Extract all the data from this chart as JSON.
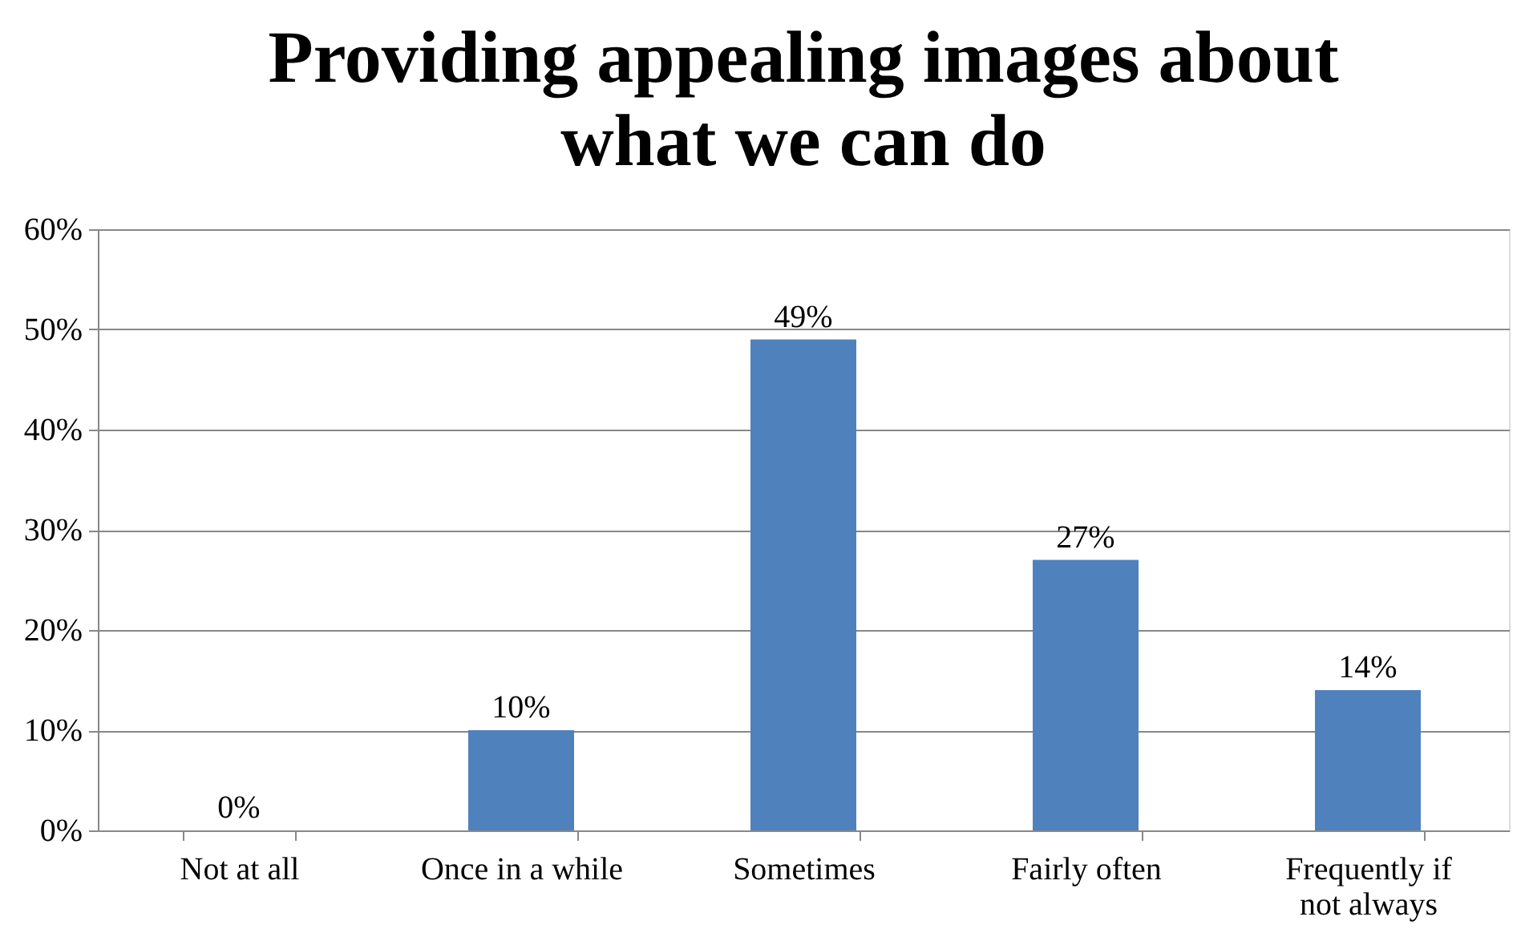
{
  "chart_data": {
    "type": "bar",
    "title": "Providing appealing images about what we can do",
    "categories": [
      "Not at all",
      "Once in a while",
      "Sometimes",
      "Fairly often",
      "Frequently if not always"
    ],
    "values": [
      0,
      10,
      49,
      27,
      14
    ],
    "color": "#4f81bd",
    "value_labels": [
      "0%",
      "10%",
      "49%",
      "27%",
      "14%"
    ],
    "ylim": [
      0,
      60
    ],
    "yticks": [
      {
        "value": 0,
        "label": "0%"
      },
      {
        "value": 10,
        "label": "10%"
      },
      {
        "value": 20,
        "label": "20%"
      },
      {
        "value": 30,
        "label": "30%"
      },
      {
        "value": 40,
        "label": "40%"
      },
      {
        "value": 50,
        "label": "50%"
      },
      {
        "value": 60,
        "label": "60%"
      }
    ],
    "grid": "y"
  }
}
